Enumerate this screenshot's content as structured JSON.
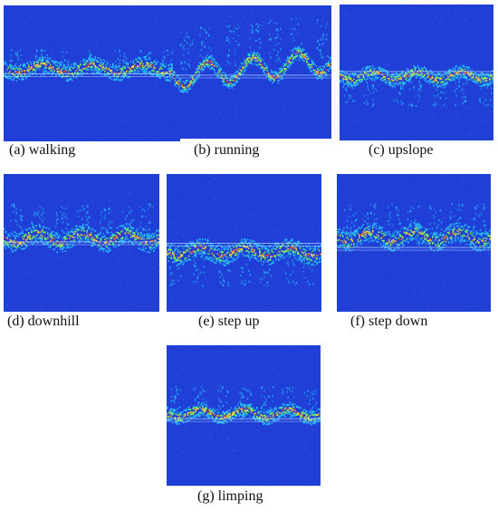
{
  "panels": [
    {
      "id": "a",
      "caption": "(a) walking"
    },
    {
      "id": "b",
      "caption": "(b) running"
    },
    {
      "id": "c",
      "caption": "(c) upslope"
    },
    {
      "id": "d",
      "caption": "(d) downhill"
    },
    {
      "id": "e",
      "caption": "(e) step up"
    },
    {
      "id": "f",
      "caption": "(f) step down"
    },
    {
      "id": "g",
      "caption": "(g) limping"
    }
  ],
  "colors": {
    "background": "#1f3fd6",
    "noise": "#2a56e8",
    "signal_low": "#29c8ff",
    "signal_mid": "#7dff5a",
    "signal_high": "#ffe030",
    "signal_peak": "#ff3a1a"
  }
}
